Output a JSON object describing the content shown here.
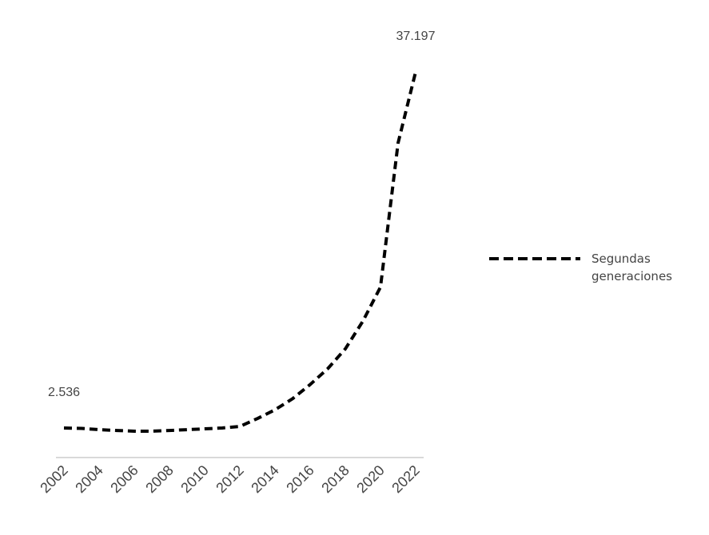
{
  "chart_data": {
    "type": "line",
    "x": [
      2002,
      2003,
      2004,
      2005,
      2006,
      2007,
      2008,
      2009,
      2010,
      2011,
      2012,
      2013,
      2014,
      2015,
      2016,
      2017,
      2018,
      2019,
      2020,
      2021,
      2022
    ],
    "xlim": [
      2002,
      2022
    ],
    "xticks": [
      2002,
      2004,
      2006,
      2008,
      2010,
      2012,
      2014,
      2016,
      2018,
      2020,
      2022
    ],
    "series": [
      {
        "name": "Segundas generaciones",
        "color": "#000000",
        "values": [
          2536,
          2500,
          2380,
          2300,
          2230,
          2230,
          2300,
          2380,
          2460,
          2540,
          2690,
          3460,
          4310,
          5390,
          6770,
          8310,
          10240,
          12940,
          16250,
          30270,
          37197
        ],
        "value_labels": [
          "2.536",
          null,
          null,
          null,
          null,
          null,
          null,
          null,
          null,
          null,
          null,
          null,
          null,
          null,
          null,
          null,
          null,
          null,
          null,
          null,
          "37.197"
        ]
      }
    ],
    "legend": "right"
  }
}
